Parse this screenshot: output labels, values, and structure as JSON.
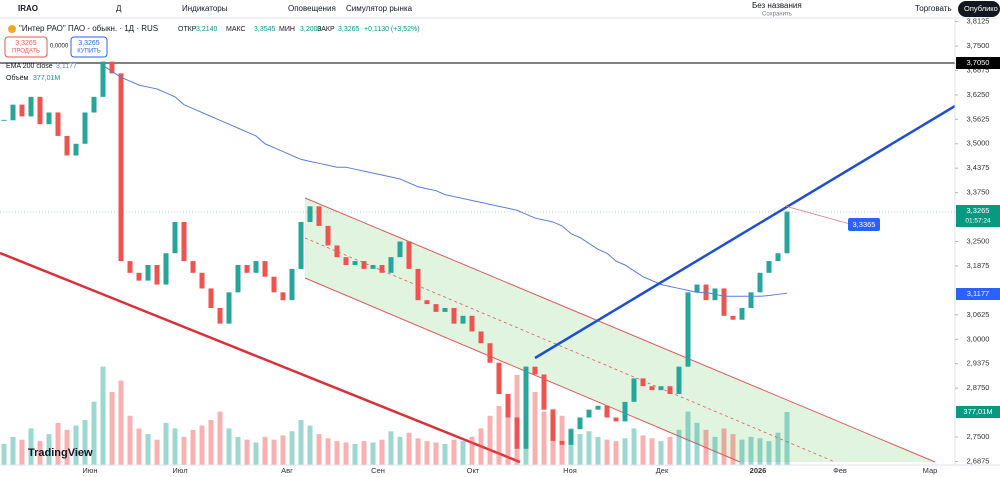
{
  "toolbar": {
    "symbol": "IRAO",
    "interval": "Д",
    "indicators": "Индикаторы",
    "alerts": "Оповещения",
    "replay": "Симулятор рынка",
    "layout_name": "Без названия",
    "saved": "Сохранить",
    "trade": "Торговать",
    "publish": "Опублико"
  },
  "legend": {
    "title": "\"Интер РАО\" ПАО - обыкн. · 1Д · RUS",
    "open_label": "ОТКР",
    "open": "3,2140",
    "high_label": "МАКС",
    "high": "3,3545",
    "low_label": "МИН",
    "low": "3,2000",
    "close_label": "ЗАКР",
    "close": "3,3265",
    "change": "+0,1130 (+3,52%)",
    "sell_price": "3,3265",
    "sell": "ПРОДАТЬ",
    "spread": "0,0000",
    "buy_price": "3,3265",
    "buy": "КУПИТЬ",
    "ema_name": "EMA 200 close",
    "ema_value": "3,1177",
    "volume_name": "Объём",
    "volume_value": "377,01M"
  },
  "logo": "TradingView",
  "time_axis": [
    "Июн",
    "Июл",
    "Авг",
    "Сен",
    "Окт",
    "Ноя",
    "Дек",
    "2026",
    "Фев",
    "Мар"
  ],
  "price_labels": {
    "level": "3,7050",
    "last": "3,3265",
    "countdown": "01:57:24",
    "ema": "3,1177",
    "volume": "377,01M",
    "target": "3,3365"
  },
  "chart_data": {
    "type": "candlestick",
    "ylim": [
      2.6785,
      3.8165
    ],
    "yticks": [
      {
        "value": 3.8125,
        "label": "3,8125"
      },
      {
        "value": 3.75,
        "label": "3,7500"
      },
      {
        "value": 3.6875,
        "label": "3,6875"
      },
      {
        "value": 3.625,
        "label": "3,6250"
      },
      {
        "value": 3.5625,
        "label": "3,5625"
      },
      {
        "value": 3.5,
        "label": "3,5000"
      },
      {
        "value": 3.4375,
        "label": "3,4375"
      },
      {
        "value": 3.375,
        "label": "3,3750"
      },
      {
        "value": 3.25,
        "label": "3,2500"
      },
      {
        "value": 3.1875,
        "label": "3,1875"
      },
      {
        "value": 3.0625,
        "label": "3,0625"
      },
      {
        "value": 3.0,
        "label": "3,0000"
      },
      {
        "value": 2.9375,
        "label": "2,9375"
      },
      {
        "value": 2.875,
        "label": "2,8750"
      },
      {
        "value": 2.75,
        "label": "2,7500"
      },
      {
        "value": 2.6875,
        "label": "2,6875"
      }
    ],
    "up_color": "#26a69a",
    "down_color": "#ef5350",
    "ema_color": "#5b7fd6",
    "close": [
      3.56,
      3.6,
      3.57,
      3.62,
      3.55,
      3.58,
      3.52,
      3.47,
      3.5,
      3.58,
      3.62,
      3.71,
      3.68,
      3.2,
      3.17,
      3.15,
      3.19,
      3.14,
      3.22,
      3.3,
      3.2,
      3.17,
      3.13,
      3.08,
      3.04,
      3.12,
      3.19,
      3.17,
      3.2,
      3.16,
      3.12,
      3.1,
      3.18,
      3.3,
      3.34,
      3.29,
      3.24,
      3.21,
      3.19,
      3.2,
      3.18,
      3.19,
      3.17,
      3.21,
      3.25,
      3.18,
      3.1,
      3.09,
      3.07,
      3.08,
      3.04,
      3.06,
      3.02,
      2.99,
      2.94,
      2.86,
      2.8,
      2.72,
      2.93,
      2.91,
      2.82,
      2.74,
      2.73,
      2.77,
      2.8,
      2.82,
      2.83,
      2.8,
      2.79,
      2.84,
      2.9,
      2.88,
      2.87,
      2.88,
      2.86,
      2.93,
      3.12,
      3.14,
      3.1,
      3.13,
      3.06,
      3.05,
      3.08,
      3.12,
      3.17,
      3.2,
      3.22,
      3.3265
    ],
    "ema": [
      null,
      null,
      null,
      null,
      null,
      null,
      null,
      null,
      null,
      null,
      null,
      3.7,
      3.685,
      3.67,
      3.66,
      3.65,
      3.645,
      3.64,
      3.63,
      3.62,
      3.6,
      3.59,
      3.58,
      3.57,
      3.56,
      3.55,
      3.54,
      3.53,
      3.52,
      3.5,
      3.49,
      3.48,
      3.47,
      3.46,
      3.455,
      3.45,
      3.445,
      3.44,
      3.44,
      3.435,
      3.43,
      3.425,
      3.42,
      3.415,
      3.41,
      3.4,
      3.39,
      3.385,
      3.38,
      3.37,
      3.365,
      3.36,
      3.355,
      3.35,
      3.345,
      3.34,
      3.335,
      3.33,
      3.32,
      3.31,
      3.305,
      3.3,
      3.29,
      3.27,
      3.26,
      3.245,
      3.23,
      3.22,
      3.2,
      3.19,
      3.175,
      3.16,
      3.15,
      3.14,
      3.135,
      3.13,
      3.125,
      3.12,
      3.12,
      3.115,
      3.11,
      3.11,
      3.11,
      3.11,
      3.11,
      3.112,
      3.115,
      3.1177
    ],
    "vlim": [
      0,
      3165
    ],
    "volume": [
      150,
      200,
      180,
      260,
      170,
      220,
      300,
      250,
      280,
      320,
      450,
      700,
      520,
      600,
      350,
      260,
      220,
      180,
      300,
      260,
      200,
      250,
      280,
      320,
      380,
      260,
      200,
      180,
      160,
      200,
      180,
      210,
      240,
      320,
      280,
      220,
      190,
      170,
      160,
      150,
      170,
      160,
      180,
      240,
      200,
      230,
      190,
      170,
      160,
      150,
      180,
      170,
      200,
      260,
      350,
      420,
      500,
      640,
      700,
      520,
      380,
      400,
      350,
      260,
      220,
      240,
      200,
      180,
      170,
      190,
      260,
      210,
      190,
      170,
      200,
      250,
      380,
      300,
      250,
      200,
      260,
      220,
      180,
      200,
      190,
      170,
      230,
      377.01
    ]
  }
}
